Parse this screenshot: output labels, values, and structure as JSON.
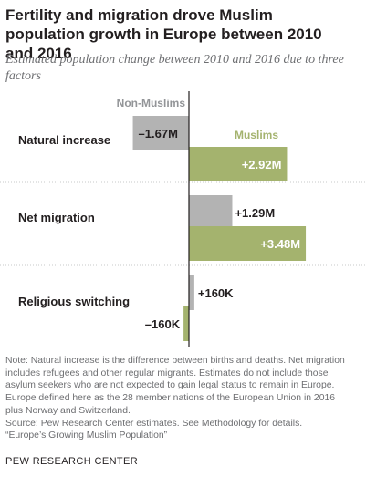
{
  "title": "Fertility and migration drove Muslim population growth in Europe between 2010 and 2016",
  "subtitle": "Estimated population change between 2010 and 2016 due to three factors",
  "chart_data": {
    "type": "bar",
    "orientation": "horizontal",
    "unit": "millions",
    "categories": [
      "Natural increase",
      "Net migration",
      "Religious switching"
    ],
    "series": [
      {
        "name": "Non-Muslims",
        "color": "#b3b3b3",
        "values": [
          -1.67,
          1.29,
          0.16
        ],
        "labels": [
          "–1.67M",
          "+1.29M",
          "+160K"
        ]
      },
      {
        "name": "Muslims",
        "color": "#a4b36e",
        "values": [
          2.92,
          3.48,
          -0.16
        ],
        "labels": [
          "+2.92M",
          "+3.48M",
          "–160K"
        ]
      }
    ],
    "legend_placement": "inline",
    "grid": false
  },
  "notes": [
    "Note: Natural increase is the difference between births and deaths. Net migration",
    "includes refugees and other regular migrants. Estimates do not include those",
    "asylum seekers who are not expected to gain legal status to remain in Europe.",
    "Europe defined here as the 28 member nations of the European Union in 2016",
    "plus Norway and Switzerland.",
    "Source: Pew Research Center estimates. See Methodology for details.",
    "“Europe’s Growing Muslim Population”"
  ],
  "footer": "PEW RESEARCH CENTER"
}
